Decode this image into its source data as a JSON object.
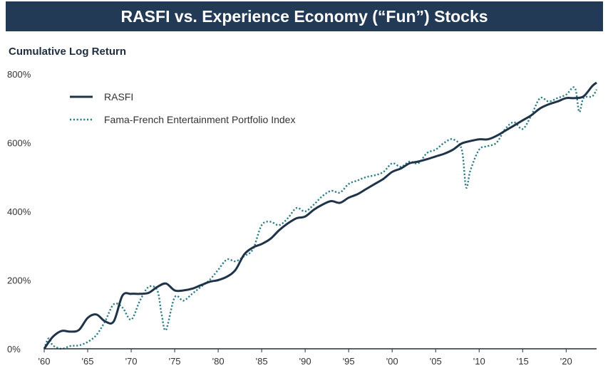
{
  "chart_data": {
    "type": "line",
    "title": "RASFI vs. Experience Economy (“Fun”) Stocks",
    "ylabel": "Cumulative Log Return",
    "xlabel": "",
    "xlim": [
      1960,
      2023.5
    ],
    "ylim": [
      0,
      800
    ],
    "x_ticks": [
      1960,
      1965,
      1970,
      1975,
      1980,
      1985,
      1990,
      1995,
      2000,
      2005,
      2010,
      2015,
      2020
    ],
    "x_tick_labels": [
      "'60",
      "'65",
      "'70",
      "'75",
      "'80",
      "'85",
      "'90",
      "'95",
      "'00",
      "'05",
      "'10",
      "'15",
      "'20"
    ],
    "y_ticks": [
      0,
      200,
      400,
      600,
      800
    ],
    "y_tick_labels": [
      "0%",
      "200%",
      "400%",
      "600%",
      "800%"
    ],
    "colors": {
      "rasfi": "#1f3349",
      "ff": "#2f7d86",
      "axis": "#1f2e3f",
      "title_bg": "#233a56"
    },
    "series": [
      {
        "name": "RASFI",
        "style": "solid",
        "x": [
          1960,
          1961,
          1962,
          1963,
          1964,
          1965,
          1966,
          1967,
          1968,
          1969,
          1970,
          1971,
          1972,
          1973,
          1974,
          1975,
          1976,
          1977,
          1978,
          1979,
          1980,
          1981,
          1982,
          1983,
          1984,
          1985,
          1986,
          1987,
          1988,
          1989,
          1990,
          1991,
          1992,
          1993,
          1994,
          1995,
          1996,
          1997,
          1998,
          1999,
          2000,
          2001,
          2002,
          2003,
          2004,
          2005,
          2006,
          2007,
          2008,
          2009,
          2010,
          2011,
          2012,
          2013,
          2014,
          2015,
          2016,
          2017,
          2018,
          2019,
          2020,
          2021,
          2022,
          2023,
          2023.5
        ],
        "values": [
          0,
          35,
          52,
          50,
          55,
          90,
          100,
          80,
          80,
          155,
          160,
          160,
          163,
          180,
          190,
          170,
          170,
          175,
          185,
          195,
          200,
          210,
          230,
          275,
          295,
          305,
          320,
          345,
          365,
          380,
          385,
          405,
          420,
          430,
          425,
          440,
          450,
          465,
          480,
          495,
          515,
          525,
          540,
          545,
          552,
          560,
          568,
          580,
          598,
          605,
          610,
          610,
          620,
          635,
          650,
          665,
          680,
          700,
          712,
          720,
          730,
          730,
          735,
          765,
          775
        ]
      },
      {
        "name": "Fama-French Entertainment Portfolio Index",
        "style": "dotted",
        "x": [
          1960,
          1960.5,
          1961,
          1962,
          1963,
          1964,
          1965,
          1966,
          1967,
          1968,
          1969,
          1970,
          1971,
          1972,
          1973,
          1973.5,
          1974,
          1975,
          1976,
          1977,
          1978,
          1979,
          1980,
          1981,
          1982,
          1983,
          1984,
          1985,
          1986,
          1987,
          1988,
          1989,
          1990,
          1991,
          1992,
          1993,
          1994,
          1995,
          1996,
          1997,
          1998,
          1999,
          2000,
          2001,
          2002,
          2003,
          2004,
          2005,
          2006,
          2007,
          2008,
          2008.5,
          2009,
          2010,
          2011,
          2012,
          2013,
          2014,
          2015,
          2016,
          2017,
          2018,
          2019,
          2020,
          2021,
          2021.5,
          2022,
          2023,
          2023.5
        ],
        "values": [
          0,
          30,
          10,
          0,
          8,
          10,
          20,
          40,
          80,
          130,
          120,
          85,
          140,
          180,
          170,
          100,
          55,
          150,
          140,
          160,
          180,
          200,
          230,
          260,
          255,
          270,
          290,
          360,
          370,
          360,
          380,
          410,
          400,
          420,
          445,
          460,
          455,
          480,
          490,
          500,
          505,
          515,
          540,
          530,
          545,
          540,
          570,
          580,
          600,
          610,
          580,
          470,
          520,
          580,
          590,
          600,
          640,
          660,
          640,
          680,
          730,
          720,
          730,
          740,
          760,
          690,
          730,
          735,
          755
        ]
      }
    ],
    "legend": {
      "position": "top-left",
      "items": [
        {
          "label": "RASFI",
          "style": "solid"
        },
        {
          "label": "Fama-French Entertainment Portfolio Index",
          "style": "dotted"
        }
      ]
    }
  }
}
